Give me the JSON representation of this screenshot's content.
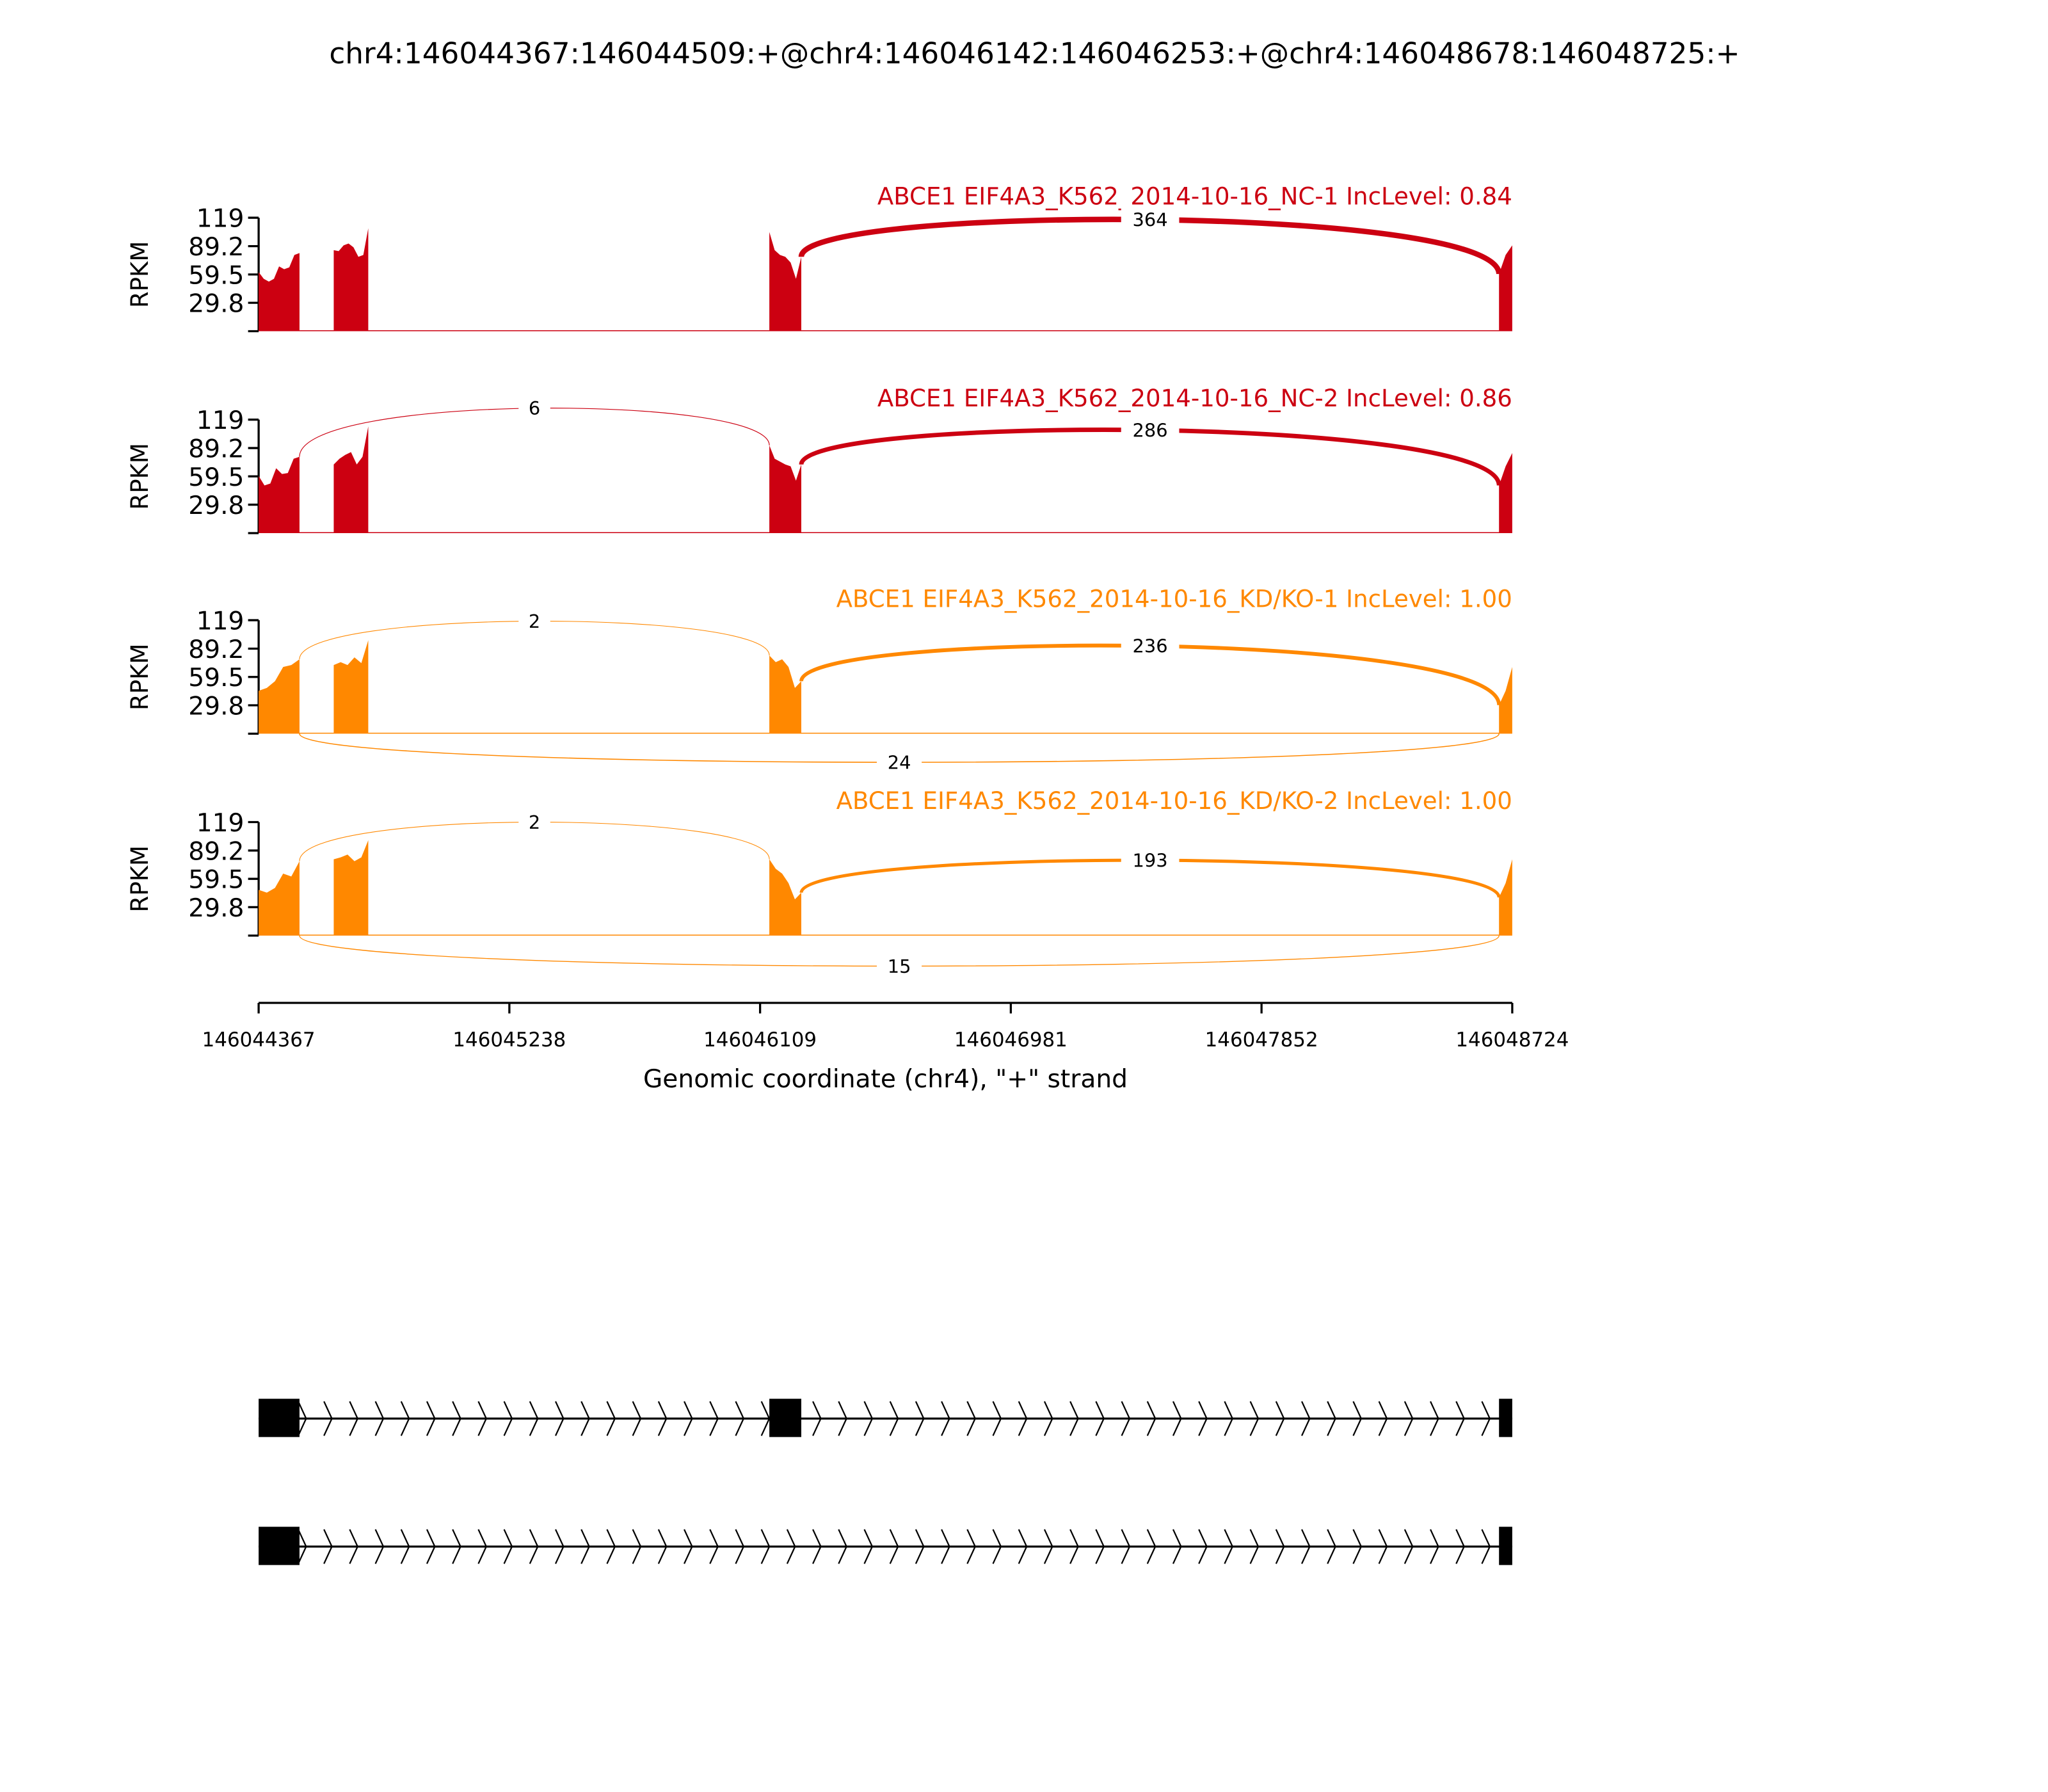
{
  "chart_data": {
    "type": "sashimi",
    "title": "chr4:146044367:146044509:+@chr4:146046142:146046253:+@chr4:146048678:146048725:+",
    "xlabel": "Genomic coordinate (chr4), \"+\" strand",
    "ylabel": "RPKM",
    "xlim": [
      146044367,
      146048724
    ],
    "ylim": [
      0,
      119
    ],
    "xticks": [
      "146044367",
      "146045238",
      "146046109",
      "146046981",
      "146047852",
      "146048724"
    ],
    "yticks": [
      "119",
      "89.2",
      "59.5",
      "29.8"
    ],
    "covered_segments": [
      [
        146044367,
        146044509
      ],
      [
        146044628,
        146044748
      ],
      [
        146046142,
        146046253
      ],
      [
        146048678,
        146048724
      ]
    ],
    "samples": [
      {
        "label": "ABCE1 EIF4A3_K562_2014-10-16_NC-1 IncLevel: 0.84",
        "color": "#CC0011",
        "coverage": [
          [
            62,
            55,
            52,
            55,
            68,
            65,
            67,
            80,
            82
          ],
          [
            85,
            84,
            90,
            92,
            88,
            78,
            80,
            108
          ],
          [
            104,
            85,
            80,
            78,
            72,
            55,
            78
          ],
          [
            60,
            80,
            90
          ]
        ],
        "junctions": [
          {
            "from": 146046253,
            "to": 146048678,
            "count": "364",
            "side": "above"
          }
        ]
      },
      {
        "label": "ABCE1 EIF4A3_K562_2014-10-16_NC-2 IncLevel: 0.86",
        "color": "#CC0011",
        "coverage": [
          [
            60,
            50,
            52,
            68,
            62,
            63,
            78,
            80
          ],
          [
            72,
            78,
            82,
            85,
            72,
            80,
            112
          ],
          [
            92,
            78,
            75,
            72,
            70,
            55,
            72
          ],
          [
            50,
            70,
            84
          ]
        ],
        "junctions": [
          {
            "from": 146044509,
            "to": 146046142,
            "count": "6",
            "side": "above"
          },
          {
            "from": 146046253,
            "to": 146048678,
            "count": "286",
            "side": "above"
          }
        ]
      },
      {
        "label": "ABCE1 EIF4A3_K562_2014-10-16_KD/KO-1 IncLevel: 1.00",
        "color": "#FF8800",
        "coverage": [
          [
            45,
            48,
            55,
            70,
            72,
            78
          ],
          [
            72,
            75,
            72,
            80,
            74,
            98
          ],
          [
            82,
            75,
            78,
            70,
            48,
            55
          ],
          [
            30,
            45,
            70
          ]
        ],
        "junctions": [
          {
            "from": 146044509,
            "to": 146046142,
            "count": "2",
            "side": "above"
          },
          {
            "from": 146046253,
            "to": 146048678,
            "count": "236",
            "side": "above"
          },
          {
            "from": 146044509,
            "to": 146048678,
            "count": "24",
            "side": "below"
          }
        ]
      },
      {
        "label": "ABCE1 EIF4A3_K562_2014-10-16_KD/KO-2 IncLevel: 1.00",
        "color": "#FF8800",
        "coverage": [
          [
            48,
            45,
            50,
            65,
            62,
            78
          ],
          [
            80,
            82,
            85,
            78,
            82,
            100
          ],
          [
            80,
            70,
            65,
            55,
            38,
            45
          ],
          [
            40,
            55,
            80
          ]
        ],
        "junctions": [
          {
            "from": 146044509,
            "to": 146046142,
            "count": "2",
            "side": "above"
          },
          {
            "from": 146046253,
            "to": 146048678,
            "count": "193",
            "side": "above"
          },
          {
            "from": 146044509,
            "to": 146048678,
            "count": "15",
            "side": "below"
          }
        ]
      }
    ],
    "isoforms": [
      {
        "exons": [
          [
            146044367,
            146044509
          ],
          [
            146046142,
            146046253
          ],
          [
            146048678,
            146048724
          ]
        ],
        "strand": "+"
      },
      {
        "exons": [
          [
            146044367,
            146044509
          ],
          [
            146048678,
            146048724
          ]
        ],
        "strand": "+"
      }
    ]
  }
}
